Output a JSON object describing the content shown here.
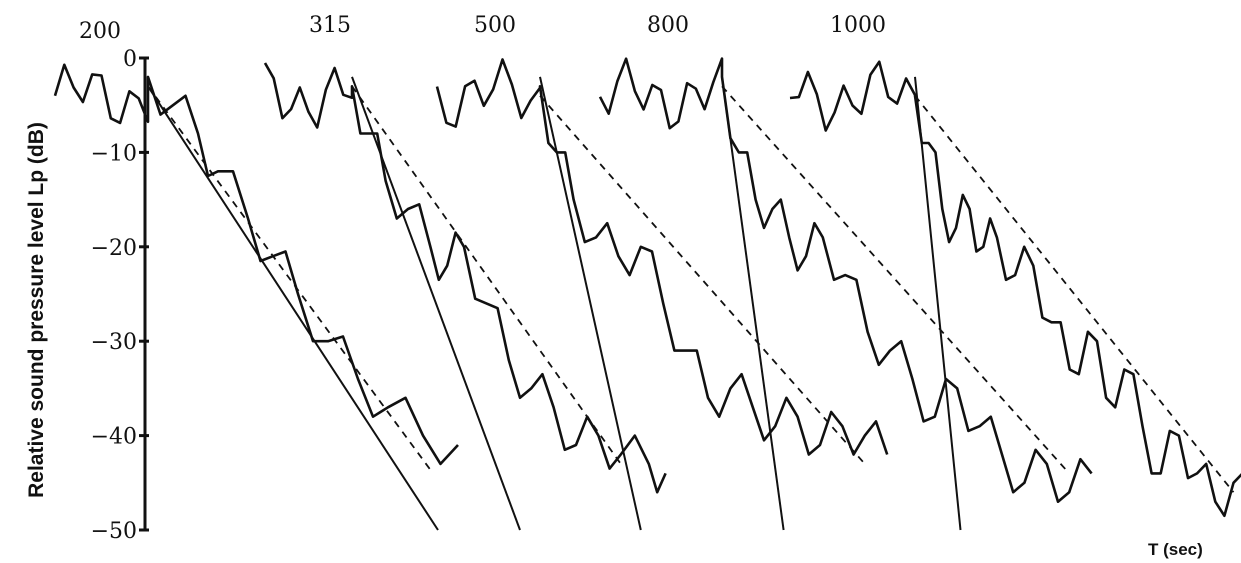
{
  "chart_data": {
    "type": "line",
    "title": "",
    "ylabel": "Relative sound pressure level  Lp (dB)",
    "xlabel": "T (sec)",
    "ylim": [
      -50,
      0
    ],
    "yticks": [
      0,
      -10,
      -20,
      -30,
      -40,
      -50
    ],
    "ytick_labels": [
      "0",
      "−10",
      "−20",
      "−30",
      "−40",
      "−50"
    ],
    "grid": false,
    "legend": "none",
    "series": [
      {
        "name": "200",
        "decay": [
          [
            0.0,
            -2
          ],
          [
            0.05,
            -5
          ],
          [
            0.1,
            -8
          ],
          [
            0.14,
            -12
          ],
          [
            0.2,
            -17
          ],
          [
            0.25,
            -21
          ],
          [
            0.3,
            -25
          ],
          [
            0.36,
            -30
          ],
          [
            0.42,
            -34
          ],
          [
            0.48,
            -37
          ],
          [
            0.55,
            -40
          ],
          [
            0.62,
            -41
          ]
        ],
        "regression": [
          [
            0.0,
            -3
          ],
          [
            0.57,
            -44
          ]
        ],
        "fit": [
          [
            0.0,
            -3
          ],
          [
            0.58,
            -50
          ]
        ]
      },
      {
        "name": "315",
        "decay": [
          [
            0.0,
            -3
          ],
          [
            0.03,
            -8
          ],
          [
            0.06,
            -13
          ],
          [
            0.1,
            -16
          ],
          [
            0.14,
            -20
          ],
          [
            0.17,
            -22
          ],
          [
            0.2,
            -20
          ],
          [
            0.24,
            -26
          ],
          [
            0.28,
            -32
          ],
          [
            0.32,
            -35
          ],
          [
            0.36,
            -37
          ],
          [
            0.4,
            -41
          ],
          [
            0.44,
            -40
          ],
          [
            0.48,
            -42
          ],
          [
            0.53,
            -43
          ],
          [
            0.56,
            -44
          ]
        ],
        "regression": [
          [
            0.0,
            -3
          ],
          [
            0.48,
            -43
          ]
        ],
        "fit": [
          [
            0.0,
            -2
          ],
          [
            0.3,
            -50
          ]
        ]
      },
      {
        "name": "500",
        "decay": [
          [
            0.0,
            -3
          ],
          [
            0.03,
            -10
          ],
          [
            0.06,
            -15
          ],
          [
            0.1,
            -19
          ],
          [
            0.14,
            -21
          ],
          [
            0.18,
            -20
          ],
          [
            0.22,
            -26
          ],
          [
            0.26,
            -31
          ],
          [
            0.3,
            -36
          ],
          [
            0.34,
            -35
          ],
          [
            0.38,
            -37
          ],
          [
            0.42,
            -39
          ],
          [
            0.46,
            -38
          ],
          [
            0.5,
            -41
          ],
          [
            0.54,
            -39
          ],
          [
            0.58,
            -40
          ],
          [
            0.62,
            -42
          ]
        ],
        "regression": [
          [
            0.0,
            -4
          ],
          [
            0.58,
            -43
          ]
        ],
        "fit": [
          [
            0.0,
            -2
          ],
          [
            0.18,
            -50
          ]
        ]
      },
      {
        "name": "800",
        "decay": [
          [
            0.0,
            -2
          ],
          [
            0.03,
            -10
          ],
          [
            0.06,
            -15
          ],
          [
            0.09,
            -16
          ],
          [
            0.12,
            -19
          ],
          [
            0.15,
            -21
          ],
          [
            0.18,
            -19
          ],
          [
            0.22,
            -23
          ],
          [
            0.26,
            -29
          ],
          [
            0.3,
            -31
          ],
          [
            0.34,
            -34
          ],
          [
            0.38,
            -38
          ],
          [
            0.42,
            -35
          ],
          [
            0.46,
            -39
          ],
          [
            0.5,
            -42
          ],
          [
            0.54,
            -45
          ],
          [
            0.58,
            -43
          ],
          [
            0.62,
            -46
          ],
          [
            0.66,
            -44
          ]
        ],
        "regression": [
          [
            0.0,
            -3
          ],
          [
            0.62,
            -44
          ]
        ],
        "fit": [
          [
            0.0,
            -2
          ],
          [
            0.11,
            -50
          ]
        ]
      },
      {
        "name": "1000",
        "decay": [
          [
            0.0,
            -4
          ],
          [
            0.03,
            -9
          ],
          [
            0.06,
            -16
          ],
          [
            0.09,
            -18
          ],
          [
            0.12,
            -16
          ],
          [
            0.15,
            -20
          ],
          [
            0.18,
            -19
          ],
          [
            0.22,
            -23
          ],
          [
            0.26,
            -22
          ],
          [
            0.3,
            -28
          ],
          [
            0.34,
            -33
          ],
          [
            0.38,
            -29
          ],
          [
            0.42,
            -36
          ],
          [
            0.46,
            -33
          ],
          [
            0.5,
            -39
          ],
          [
            0.54,
            -44
          ],
          [
            0.58,
            -40
          ],
          [
            0.62,
            -44
          ],
          [
            0.66,
            -47
          ],
          [
            0.7,
            -45
          ],
          [
            0.74,
            -48
          ]
        ],
        "regression": [
          [
            0.0,
            -4
          ],
          [
            0.7,
            -46
          ]
        ],
        "fit": [
          [
            0.0,
            -2
          ],
          [
            0.1,
            -50
          ]
        ]
      }
    ]
  }
}
